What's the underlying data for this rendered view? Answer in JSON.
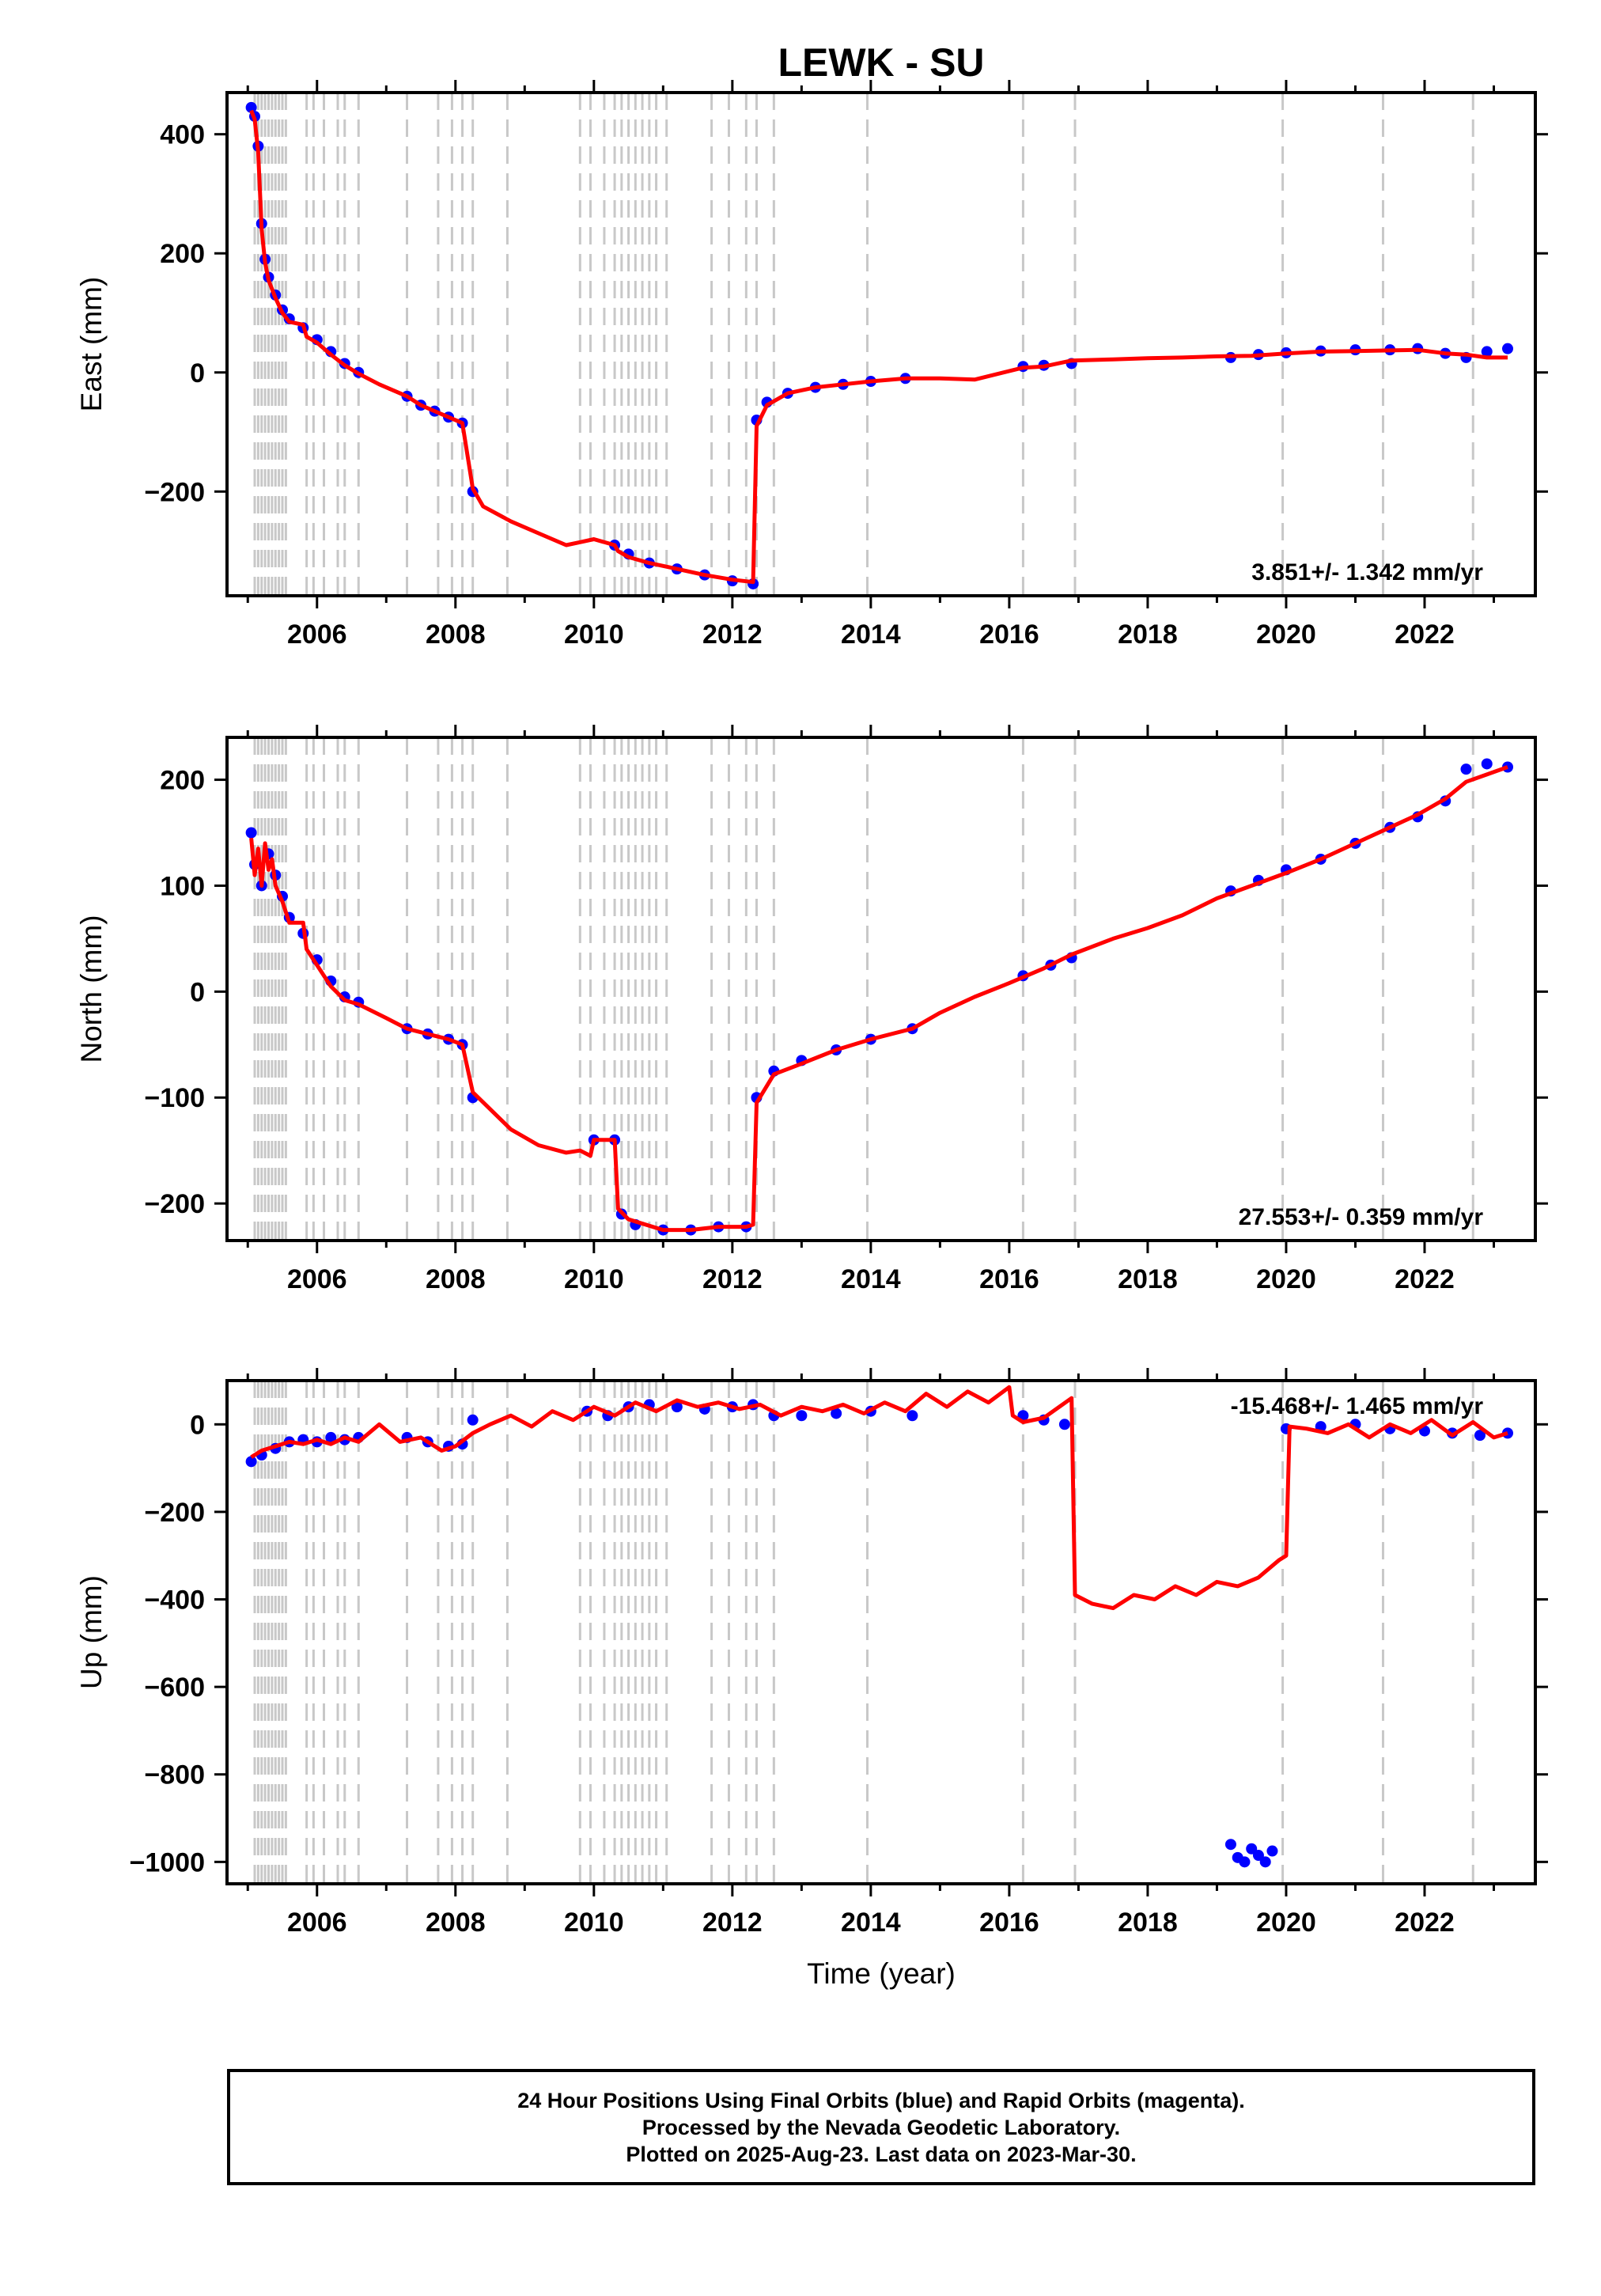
{
  "title": "LEWK - SU",
  "chart_data": [
    {
      "type": "scatter",
      "panel": "east",
      "ylabel": "East (mm)",
      "xlabel": "",
      "xlim": [
        2004.7,
        2023.6
      ],
      "ylim": [
        -375,
        470
      ],
      "xticks": [
        2006,
        2008,
        2010,
        2012,
        2014,
        2016,
        2018,
        2020,
        2022
      ],
      "yticks": [
        -200,
        0,
        200,
        400
      ],
      "annotation": "3.851+/- 1.342 mm/yr",
      "series": [
        {
          "color": "#0000ff",
          "style": "points",
          "x": [
            2005.05,
            2005.1,
            2005.15,
            2005.2,
            2005.25,
            2005.3,
            2005.4,
            2005.5,
            2005.6,
            2005.8,
            2006.0,
            2006.2,
            2006.4,
            2006.6,
            2007.3,
            2007.5,
            2007.7,
            2007.9,
            2008.1,
            2008.25,
            2010.3,
            2010.5,
            2010.8,
            2011.2,
            2011.6,
            2012.0,
            2012.3,
            2012.35,
            2012.5,
            2012.8,
            2013.2,
            2013.6,
            2014.0,
            2014.5,
            2016.2,
            2016.5,
            2016.9,
            2019.2,
            2019.6,
            2020.0,
            2020.5,
            2021.0,
            2021.5,
            2021.9,
            2022.3,
            2022.6,
            2022.9,
            2023.2
          ],
          "y": [
            445,
            430,
            380,
            250,
            190,
            160,
            130,
            105,
            90,
            75,
            55,
            35,
            15,
            0,
            -40,
            -55,
            -65,
            -75,
            -85,
            -200,
            -290,
            -305,
            -320,
            -330,
            -340,
            -350,
            -355,
            -80,
            -50,
            -35,
            -25,
            -20,
            -15,
            -10,
            10,
            12,
            15,
            25,
            30,
            33,
            36,
            38,
            38,
            40,
            32,
            25,
            35,
            40
          ]
        },
        {
          "color": "#ff0000",
          "style": "line",
          "x": [
            2005.05,
            2005.1,
            2005.15,
            2005.2,
            2005.25,
            2005.3,
            2005.4,
            2005.5,
            2005.6,
            2005.8,
            2005.85,
            2006.0,
            2006.2,
            2006.4,
            2006.6,
            2006.9,
            2007.3,
            2007.5,
            2007.7,
            2007.9,
            2008.1,
            2008.25,
            2008.4,
            2008.8,
            2009.2,
            2009.6,
            2009.8,
            2010.0,
            2010.3,
            2010.35,
            2010.5,
            2010.8,
            2011.2,
            2011.6,
            2012.0,
            2012.3,
            2012.35,
            2012.5,
            2012.8,
            2013.2,
            2013.6,
            2014.0,
            2014.5,
            2015.0,
            2015.5,
            2016.2,
            2016.5,
            2016.9,
            2017.5,
            2018.0,
            2018.5,
            2019.0,
            2019.5,
            2020.0,
            2020.5,
            2021.0,
            2021.5,
            2021.9,
            2022.3,
            2022.6,
            2022.9,
            2023.2
          ],
          "y": [
            440,
            425,
            370,
            240,
            185,
            155,
            125,
            100,
            85,
            80,
            60,
            50,
            30,
            12,
            -2,
            -20,
            -40,
            -55,
            -65,
            -75,
            -85,
            -195,
            -225,
            -250,
            -270,
            -290,
            -285,
            -280,
            -290,
            -300,
            -310,
            -320,
            -330,
            -340,
            -348,
            -352,
            -90,
            -55,
            -35,
            -25,
            -20,
            -15,
            -10,
            -10,
            -12,
            8,
            10,
            20,
            22,
            24,
            25,
            27,
            28,
            32,
            35,
            36,
            37,
            38,
            32,
            30,
            25,
            25
          ]
        }
      ]
    },
    {
      "type": "scatter",
      "panel": "north",
      "ylabel": "North (mm)",
      "xlabel": "",
      "xlim": [
        2004.7,
        2023.6
      ],
      "ylim": [
        -235,
        240
      ],
      "xticks": [
        2006,
        2008,
        2010,
        2012,
        2014,
        2016,
        2018,
        2020,
        2022
      ],
      "yticks": [
        -200,
        -100,
        0,
        100,
        200
      ],
      "annotation": "27.553+/- 0.359 mm/yr",
      "series": [
        {
          "color": "#0000ff",
          "style": "points",
          "x": [
            2005.05,
            2005.1,
            2005.2,
            2005.3,
            2005.4,
            2005.5,
            2005.6,
            2005.8,
            2006.0,
            2006.2,
            2006.4,
            2006.6,
            2007.3,
            2007.6,
            2007.9,
            2008.1,
            2008.25,
            2010.0,
            2010.3,
            2010.4,
            2010.6,
            2011.0,
            2011.4,
            2011.8,
            2012.2,
            2012.35,
            2012.6,
            2013.0,
            2013.5,
            2014.0,
            2014.6,
            2016.2,
            2016.6,
            2016.9,
            2019.2,
            2019.6,
            2020.0,
            2020.5,
            2021.0,
            2021.5,
            2021.9,
            2022.3,
            2022.6,
            2022.9,
            2023.2
          ],
          "y": [
            150,
            120,
            100,
            130,
            110,
            90,
            70,
            55,
            30,
            10,
            -5,
            -10,
            -35,
            -40,
            -45,
            -50,
            -100,
            -140,
            -140,
            -210,
            -220,
            -225,
            -225,
            -222,
            -222,
            -100,
            -75,
            -65,
            -55,
            -45,
            -35,
            15,
            25,
            32,
            95,
            105,
            115,
            125,
            140,
            155,
            165,
            180,
            210,
            215,
            212
          ]
        },
        {
          "color": "#ff0000",
          "style": "line",
          "x": [
            2005.05,
            2005.1,
            2005.15,
            2005.2,
            2005.25,
            2005.3,
            2005.35,
            2005.4,
            2005.5,
            2005.6,
            2005.8,
            2005.85,
            2006.0,
            2006.2,
            2006.4,
            2006.6,
            2007.0,
            2007.3,
            2007.6,
            2007.9,
            2008.1,
            2008.25,
            2008.8,
            2009.2,
            2009.6,
            2009.8,
            2009.95,
            2010.0,
            2010.3,
            2010.35,
            2010.5,
            2011.0,
            2011.4,
            2011.8,
            2012.2,
            2012.3,
            2012.35,
            2012.6,
            2013.0,
            2013.5,
            2014.0,
            2014.6,
            2015.0,
            2015.5,
            2016.0,
            2016.5,
            2016.9,
            2017.5,
            2018.0,
            2018.5,
            2019.0,
            2019.5,
            2020.0,
            2020.5,
            2021.0,
            2021.5,
            2021.9,
            2022.3,
            2022.6,
            2022.9,
            2023.2
          ],
          "y": [
            145,
            110,
            135,
            100,
            140,
            115,
            125,
            100,
            85,
            65,
            65,
            40,
            25,
            5,
            -8,
            -12,
            -25,
            -35,
            -40,
            -45,
            -50,
            -95,
            -130,
            -145,
            -152,
            -150,
            -155,
            -140,
            -140,
            -205,
            -215,
            -225,
            -225,
            -222,
            -222,
            -220,
            -105,
            -78,
            -68,
            -55,
            -45,
            -35,
            -20,
            -5,
            8,
            22,
            35,
            50,
            60,
            72,
            88,
            100,
            112,
            125,
            140,
            155,
            167,
            182,
            198,
            205,
            212
          ]
        }
      ]
    },
    {
      "type": "scatter",
      "panel": "up",
      "ylabel": "Up (mm)",
      "xlabel": "Time (year)",
      "xlim": [
        2004.7,
        2023.6
      ],
      "ylim": [
        -1050,
        100
      ],
      "xticks": [
        2006,
        2008,
        2010,
        2012,
        2014,
        2016,
        2018,
        2020,
        2022
      ],
      "yticks": [
        -1000,
        -800,
        -600,
        -400,
        -200,
        0
      ],
      "annotation": "-15.468+/- 1.465 mm/yr",
      "series": [
        {
          "color": "#0000ff",
          "style": "points",
          "x": [
            2005.05,
            2005.2,
            2005.4,
            2005.6,
            2005.8,
            2006.0,
            2006.2,
            2006.4,
            2006.6,
            2007.3,
            2007.6,
            2007.9,
            2008.1,
            2008.25,
            2009.9,
            2010.2,
            2010.5,
            2010.8,
            2011.2,
            2011.6,
            2012.0,
            2012.3,
            2012.6,
            2013.0,
            2013.5,
            2014.0,
            2014.6,
            2016.2,
            2016.5,
            2016.8,
            2019.2,
            2019.3,
            2019.4,
            2019.5,
            2019.6,
            2019.7,
            2019.8,
            2020.0,
            2020.5,
            2021.0,
            2021.5,
            2022.0,
            2022.4,
            2022.8,
            2023.2
          ],
          "y": [
            -85,
            -70,
            -55,
            -40,
            -35,
            -40,
            -30,
            -35,
            -30,
            -30,
            -40,
            -50,
            -45,
            10,
            30,
            20,
            40,
            45,
            40,
            35,
            40,
            45,
            20,
            20,
            25,
            30,
            20,
            20,
            10,
            0,
            -960,
            -990,
            -1000,
            -970,
            -985,
            -1000,
            -975,
            -10,
            -5,
            0,
            -10,
            -15,
            -20,
            -25,
            -20
          ]
        },
        {
          "color": "#ff0000",
          "style": "line",
          "x": [
            2005.05,
            2005.2,
            2005.4,
            2005.6,
            2005.8,
            2006.0,
            2006.2,
            2006.4,
            2006.6,
            2006.9,
            2007.2,
            2007.5,
            2007.8,
            2008.0,
            2008.25,
            2008.5,
            2008.8,
            2009.1,
            2009.4,
            2009.7,
            2010.0,
            2010.3,
            2010.6,
            2010.9,
            2011.2,
            2011.5,
            2011.8,
            2012.1,
            2012.4,
            2012.7,
            2013.0,
            2013.3,
            2013.6,
            2013.9,
            2014.2,
            2014.5,
            2014.8,
            2015.1,
            2015.4,
            2015.7,
            2016.0,
            2016.05,
            2016.2,
            2016.5,
            2016.9,
            2016.95,
            2017.2,
            2017.5,
            2017.8,
            2018.1,
            2018.4,
            2018.7,
            2019.0,
            2019.3,
            2019.6,
            2019.9,
            2020.0,
            2020.05,
            2020.3,
            2020.6,
            2020.9,
            2021.2,
            2021.5,
            2021.8,
            2022.1,
            2022.4,
            2022.7,
            2023.0,
            2023.2
          ],
          "y": [
            -75,
            -60,
            -50,
            -40,
            -45,
            -35,
            -45,
            -30,
            -40,
            0,
            -40,
            -30,
            -60,
            -50,
            -20,
            0,
            20,
            -5,
            30,
            10,
            40,
            20,
            50,
            30,
            55,
            40,
            50,
            35,
            45,
            20,
            40,
            30,
            45,
            25,
            50,
            30,
            70,
            40,
            75,
            50,
            85,
            20,
            5,
            15,
            60,
            -390,
            -410,
            -420,
            -390,
            -400,
            -370,
            -390,
            -360,
            -370,
            -350,
            -310,
            -300,
            -5,
            -10,
            -20,
            0,
            -30,
            0,
            -20,
            10,
            -25,
            5,
            -30,
            -20
          ]
        }
      ]
    }
  ],
  "caption": {
    "line1": "24 Hour Positions Using Final Orbits (blue) and Rapid Orbits (magenta).",
    "line2": "Processed by the Nevada Geodetic Laboratory.",
    "line3": "Plotted on 2025-Aug-23. Last data on 2023-Mar-30."
  },
  "events": {
    "color": "#c8c8c8",
    "x": [
      2005.1,
      2005.15,
      2005.2,
      2005.25,
      2005.3,
      2005.35,
      2005.4,
      2005.45,
      2005.5,
      2005.55,
      2005.85,
      2005.95,
      2006.1,
      2006.3,
      2006.4,
      2006.6,
      2007.3,
      2007.75,
      2007.95,
      2008.1,
      2008.25,
      2008.75,
      2009.8,
      2009.95,
      2010.15,
      2010.3,
      2010.4,
      2010.5,
      2010.6,
      2010.7,
      2010.8,
      2010.9,
      2011.05,
      2011.7,
      2011.95,
      2012.2,
      2012.35,
      2012.6,
      2013.95,
      2016.2,
      2016.95,
      2019.95,
      2021.4,
      2022.7
    ]
  }
}
